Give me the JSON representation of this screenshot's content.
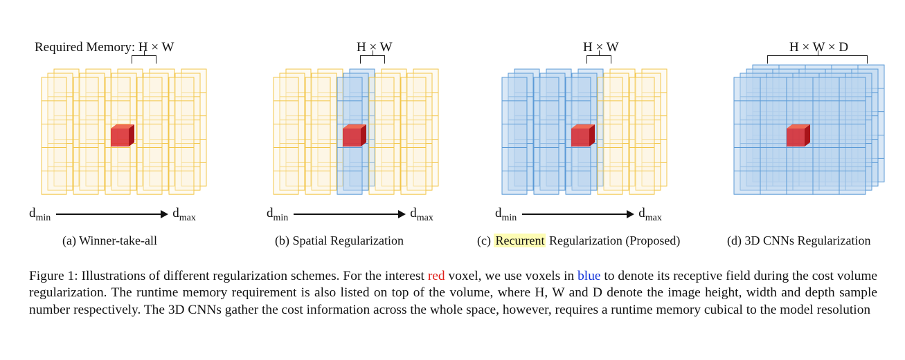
{
  "panels": [
    {
      "memory_label": "Required Memory: H × W",
      "d_min": "d",
      "d_min_sub": "min",
      "d_max": "d",
      "d_max_sub": "max",
      "caption": "(a) Winner-take-all",
      "scheme": "winner-take-all"
    },
    {
      "memory_label": "H × W",
      "d_min": "d",
      "d_min_sub": "min",
      "d_max": "d",
      "d_max_sub": "max",
      "caption": "(b) Spatial Regularization",
      "scheme": "spatial"
    },
    {
      "memory_label": "H × W",
      "d_min": "d",
      "d_min_sub": "min",
      "d_max": "d",
      "d_max_sub": "max",
      "caption_highlight": "Recurrent",
      "caption_prefix": "(c) ",
      "caption_suffix": " Regularization (Proposed)",
      "scheme": "recurrent"
    },
    {
      "memory_label": "H × W × D",
      "caption": "(d) 3D CNNs Regularization",
      "scheme": "3d-cnn"
    }
  ],
  "colors": {
    "inactive_edge": "#f2c64a",
    "inactive_fill": "#fbf3dc",
    "receptive_edge": "#5b9ad6",
    "receptive_fill": "#bcd5ee",
    "voxel_red": "#d8262b",
    "highlight": "#fdfcb4"
  },
  "figure_caption": {
    "part1": "Figure 1: Illustrations of different regularization schemes. For the interest ",
    "red_word": "red",
    "part2": " voxel, we use voxels in ",
    "blue_word": "blue",
    "part3": " to denote its receptive field during the cost volume regularization. The runtime memory requirement is also listed on top of the volume, where H, W and D denote the image height, width and depth sample number respectively. The 3D CNNs gather the cost information across the whole space, however, requires a runtime memory cubical to the model resolution"
  }
}
